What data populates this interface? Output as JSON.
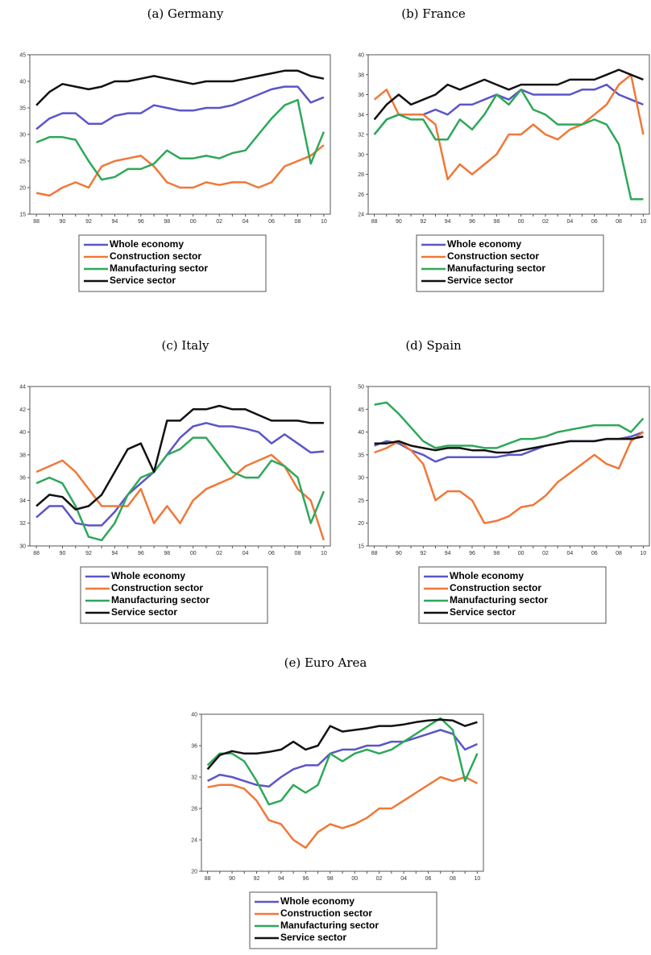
{
  "chart_data": [
    {
      "type": "line",
      "title": "(a) Germany",
      "categories": [
        "88",
        null,
        "90",
        null,
        "92",
        null,
        "94",
        null,
        "96",
        null,
        "98",
        null,
        "00",
        null,
        "02",
        null,
        "04",
        null,
        "06",
        null,
        "08",
        null,
        "10"
      ],
      "ylim": [
        15,
        45
      ],
      "yticks": [
        15,
        20,
        25,
        30,
        35,
        40,
        45
      ],
      "series": [
        {
          "name": "Whole economy",
          "color": "#5b55c8",
          "values": [
            31,
            33,
            34,
            34,
            32,
            32,
            33.5,
            34,
            34,
            35.5,
            35,
            34.5,
            34.5,
            35,
            35,
            35.5,
            36.5,
            37.5,
            38.5,
            39,
            39,
            36,
            37
          ]
        },
        {
          "name": "Construction sector",
          "color": "#f07838",
          "values": [
            19,
            18.5,
            20,
            21,
            20,
            24,
            25,
            25.5,
            26,
            24,
            21,
            20,
            20,
            21,
            20.5,
            21,
            21,
            20,
            21,
            24,
            25,
            26,
            28
          ]
        },
        {
          "name": "Manufacturing sector",
          "color": "#2ea85a",
          "values": [
            28.5,
            29.5,
            29.5,
            29,
            25,
            21.5,
            22,
            23.5,
            23.5,
            24.5,
            27,
            25.5,
            25.5,
            26,
            25.5,
            26.5,
            27,
            30,
            33,
            35.5,
            36.5,
            24.5,
            30.5
          ]
        },
        {
          "name": "Service sector",
          "color": "#111111",
          "values": [
            35.5,
            38,
            39.5,
            39,
            38.5,
            39,
            40,
            40,
            40.5,
            41,
            40.5,
            40,
            39.5,
            40,
            40,
            40,
            40.5,
            41,
            41.5,
            42,
            42,
            41,
            40.5
          ]
        }
      ]
    },
    {
      "type": "line",
      "title": "(b) France",
      "categories": [
        "88",
        null,
        "90",
        null,
        "92",
        null,
        "94",
        null,
        "96",
        null,
        "98",
        null,
        "00",
        null,
        "02",
        null,
        "04",
        null,
        "06",
        null,
        "08",
        null,
        "10"
      ],
      "ylim": [
        24,
        40
      ],
      "yticks": [
        24,
        26,
        28,
        30,
        32,
        34,
        36,
        38,
        40
      ],
      "series": [
        {
          "name": "Whole economy",
          "color": "#5b55c8",
          "values": [
            32,
            33.5,
            34,
            34,
            34,
            34.5,
            34,
            35,
            35,
            35.5,
            36,
            35.5,
            36.5,
            36,
            36,
            36,
            36,
            36.5,
            36.5,
            37,
            36,
            35.5,
            35
          ]
        },
        {
          "name": "Construction sector",
          "color": "#f07838",
          "values": [
            35.5,
            36.5,
            34,
            34,
            34,
            33,
            27.5,
            29,
            28,
            29,
            30,
            32,
            32,
            33,
            32,
            31.5,
            32.5,
            33,
            34,
            35,
            37,
            38,
            32
          ]
        },
        {
          "name": "Manufacturing sector",
          "color": "#2ea85a",
          "values": [
            32,
            33.5,
            34,
            33.5,
            33.5,
            31.5,
            31.5,
            33.5,
            32.5,
            34,
            36,
            35,
            36.5,
            34.5,
            34,
            33,
            33,
            33,
            33.5,
            33,
            31,
            25.5,
            25.5
          ]
        },
        {
          "name": "Service sector",
          "color": "#111111",
          "values": [
            33.5,
            35,
            36,
            35,
            35.5,
            36,
            37,
            36.5,
            37,
            37.5,
            37,
            36.5,
            37,
            37,
            37,
            37,
            37.5,
            37.5,
            37.5,
            38,
            38.5,
            38,
            37.5
          ]
        }
      ]
    },
    {
      "type": "line",
      "title": "(c) Italy",
      "categories": [
        "88",
        null,
        "90",
        null,
        "92",
        null,
        "94",
        null,
        "96",
        null,
        "98",
        null,
        "00",
        null,
        "02",
        null,
        "04",
        null,
        "06",
        null,
        "08",
        null,
        "10"
      ],
      "ylim": [
        30,
        44
      ],
      "yticks": [
        30,
        32,
        34,
        36,
        38,
        40,
        42,
        44
      ],
      "series": [
        {
          "name": "Whole economy",
          "color": "#5b55c8",
          "values": [
            32.5,
            33.5,
            33.5,
            32,
            31.8,
            31.8,
            33,
            34.5,
            35.5,
            36.5,
            38,
            39.5,
            40.5,
            40.8,
            40.5,
            40.5,
            40.3,
            40,
            39,
            39.8,
            39,
            38.2,
            38.3
          ]
        },
        {
          "name": "Construction sector",
          "color": "#f07838",
          "values": [
            36.5,
            37,
            37.5,
            36.5,
            35,
            33.5,
            33.5,
            33.5,
            35,
            32,
            33.5,
            32,
            34,
            35,
            35.5,
            36,
            37,
            37.5,
            38,
            37,
            35,
            34,
            30.5
          ]
        },
        {
          "name": "Manufacturing sector",
          "color": "#2ea85a",
          "values": [
            35.5,
            36,
            35.5,
            33.5,
            30.8,
            30.5,
            32,
            34.5,
            36,
            36.5,
            38,
            38.5,
            39.5,
            39.5,
            38,
            36.5,
            36,
            36,
            37.5,
            37,
            36,
            32,
            34.8
          ]
        },
        {
          "name": "Service sector",
          "color": "#111111",
          "values": [
            33.5,
            34.5,
            34.3,
            33.2,
            33.5,
            34.5,
            36.5,
            38.5,
            39,
            36.5,
            41,
            41,
            42,
            42,
            42.3,
            42,
            42,
            41.5,
            41,
            41,
            41,
            40.8,
            40.8
          ]
        }
      ]
    },
    {
      "type": "line",
      "title": "(d) Spain",
      "categories": [
        "88",
        null,
        "90",
        null,
        "92",
        null,
        "94",
        null,
        "96",
        null,
        "98",
        null,
        "00",
        null,
        "02",
        null,
        "04",
        null,
        "06",
        null,
        "08",
        null,
        "10"
      ],
      "ylim": [
        15,
        50
      ],
      "yticks": [
        15,
        20,
        25,
        30,
        35,
        40,
        45,
        50
      ],
      "series": [
        {
          "name": "Whole economy",
          "color": "#5b55c8",
          "values": [
            37,
            38,
            37.5,
            36,
            35,
            33.5,
            34.5,
            34.5,
            34.5,
            34.5,
            34.5,
            35,
            35,
            36,
            37,
            37.5,
            38,
            38,
            38,
            38.5,
            38.5,
            39,
            40
          ]
        },
        {
          "name": "Construction sector",
          "color": "#f07838",
          "values": [
            35.5,
            36.5,
            38,
            36,
            33,
            25,
            27,
            27,
            25,
            20,
            20.5,
            21.5,
            23.5,
            24,
            26,
            29,
            31,
            33,
            35,
            33,
            32,
            38,
            40
          ]
        },
        {
          "name": "Manufacturing sector",
          "color": "#2ea85a",
          "values": [
            46,
            46.5,
            44,
            41,
            38,
            36.5,
            37,
            37,
            37,
            36.5,
            36.5,
            37.5,
            38.5,
            38.5,
            39,
            40,
            40.5,
            41,
            41.5,
            41.5,
            41.5,
            40,
            43
          ]
        },
        {
          "name": "Service sector",
          "color": "#111111",
          "values": [
            37.5,
            37.5,
            38,
            37,
            36.5,
            36,
            36.5,
            36.5,
            36,
            36,
            35.5,
            35.5,
            36,
            36.5,
            37,
            37.5,
            38,
            38,
            38,
            38.5,
            38.5,
            38.5,
            39
          ]
        }
      ]
    },
    {
      "type": "line",
      "title": "(e) Euro Area",
      "categories": [
        "88",
        null,
        "90",
        null,
        "92",
        null,
        "94",
        null,
        "96",
        null,
        "98",
        null,
        "00",
        null,
        "02",
        null,
        "04",
        null,
        "06",
        null,
        "08",
        null,
        "10"
      ],
      "ylim": [
        20,
        40
      ],
      "yticks": [
        20,
        24,
        28,
        32,
        36,
        40
      ],
      "series": [
        {
          "name": "Whole economy",
          "color": "#5b55c8",
          "values": [
            31.5,
            32.3,
            32,
            31.5,
            31,
            30.8,
            32,
            33,
            33.5,
            33.5,
            35,
            35.5,
            35.5,
            36,
            36,
            36.5,
            36.5,
            37,
            37.5,
            38,
            37.5,
            35.5,
            36.2
          ]
        },
        {
          "name": "Construction sector",
          "color": "#f07838",
          "values": [
            30.7,
            31,
            31,
            30.5,
            29,
            26.5,
            26,
            24,
            23,
            25,
            26,
            25.5,
            26,
            26.8,
            28,
            28,
            29,
            30,
            31,
            32,
            31.5,
            32,
            31.2
          ]
        },
        {
          "name": "Manufacturing sector",
          "color": "#2ea85a",
          "values": [
            33.5,
            35,
            35,
            34,
            31.5,
            28.5,
            29,
            31,
            30,
            31,
            35,
            34,
            35,
            35.5,
            35,
            35.5,
            36.5,
            37.5,
            38.5,
            39.5,
            38,
            31.5,
            35
          ]
        },
        {
          "name": "Service sector",
          "color": "#111111",
          "values": [
            33,
            34.8,
            35.3,
            35,
            35,
            35.2,
            35.5,
            36.5,
            35.5,
            36,
            38.5,
            37.8,
            38,
            38.2,
            38.5,
            38.5,
            38.7,
            39,
            39.2,
            39.3,
            39.2,
            38.5,
            39
          ]
        }
      ]
    }
  ]
}
